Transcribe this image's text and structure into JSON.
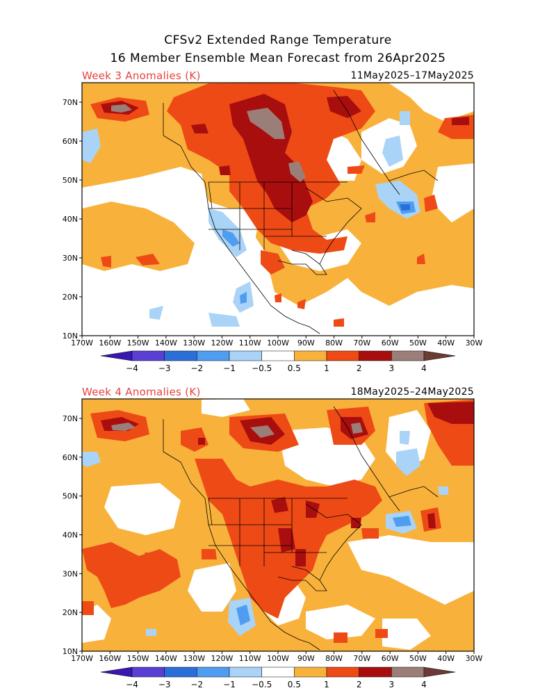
{
  "header": {
    "title_line1": "CFSv2 Extended Range Temperature",
    "title_line2": "16 Member Ensemble Mean Forecast from 26Apr2025"
  },
  "panels": [
    {
      "label": "Week 3 Anomalies (K)",
      "dates": "11May2025–17May2025"
    },
    {
      "label": "Week 4 Anomalies (K)",
      "dates": "18May2025–24May2025"
    }
  ],
  "axes": {
    "lat_labels": [
      "70N",
      "60N",
      "50N",
      "40N",
      "30N",
      "20N",
      "10N"
    ],
    "lon_labels": [
      "170W",
      "160W",
      "150W",
      "140W",
      "130W",
      "120W",
      "110W",
      "100W",
      "90W",
      "80W",
      "70W",
      "60W",
      "50W",
      "40W",
      "30W"
    ]
  },
  "colorbar": {
    "labels": [
      "−4",
      "−3",
      "−2",
      "−1",
      "−0.5",
      "0.5",
      "1",
      "2",
      "3",
      "4"
    ],
    "colors": [
      "#3a17b0",
      "#5a3fd4",
      "#2a6fd8",
      "#4f9df0",
      "#a9d3f7",
      "#ffffff",
      "#f8b23c",
      "#ee4a16",
      "#a80e0e",
      "#9c7e78",
      "#6a3c34"
    ]
  },
  "colors": {
    "orange": "#f8b23c",
    "red": "#ee4a16",
    "darkred": "#a80e0e",
    "brown": "#9c7e78",
    "lightblue": "#a9d3f7",
    "blue": "#4f9df0",
    "medblue": "#2a6fd8",
    "title_red": "#e8413c"
  }
}
